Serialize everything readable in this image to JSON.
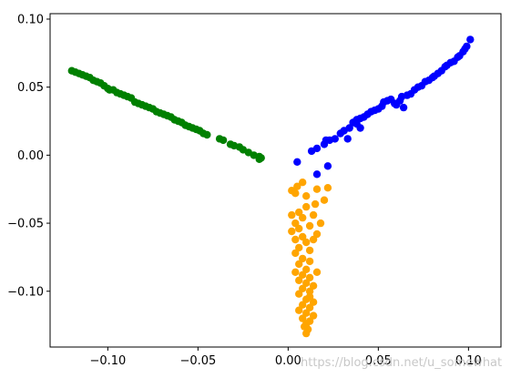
{
  "chart_data": {
    "type": "scatter",
    "title": "",
    "xlabel": "",
    "ylabel": "",
    "xlim": [
      -0.132,
      0.118
    ],
    "ylim": [
      -0.141,
      0.104
    ],
    "grid": false,
    "legend": "none",
    "x_ticks": [
      {
        "value": -0.1,
        "label": "−0.10"
      },
      {
        "value": -0.05,
        "label": "−0.05"
      },
      {
        "value": 0.0,
        "label": "0.00"
      },
      {
        "value": 0.05,
        "label": "0.05"
      },
      {
        "value": 0.1,
        "label": "0.10"
      }
    ],
    "y_ticks": [
      {
        "value": 0.1,
        "label": "0.10"
      },
      {
        "value": 0.05,
        "label": "0.05"
      },
      {
        "value": 0.0,
        "label": "0.00"
      },
      {
        "value": -0.05,
        "label": "−0.05"
      },
      {
        "value": -0.1,
        "label": "−0.10"
      }
    ],
    "series": [
      {
        "color": "#008000",
        "points": [
          [
            -0.12,
            0.062
          ],
          [
            -0.118,
            0.061
          ],
          [
            -0.116,
            0.06
          ],
          [
            -0.114,
            0.059
          ],
          [
            -0.112,
            0.058
          ],
          [
            -0.11,
            0.057
          ],
          [
            -0.108,
            0.055
          ],
          [
            -0.106,
            0.054
          ],
          [
            -0.104,
            0.053
          ],
          [
            -0.102,
            0.051
          ],
          [
            -0.1,
            0.049
          ],
          [
            -0.099,
            0.048
          ],
          [
            -0.097,
            0.048
          ],
          [
            -0.095,
            0.046
          ],
          [
            -0.093,
            0.045
          ],
          [
            -0.091,
            0.044
          ],
          [
            -0.089,
            0.043
          ],
          [
            -0.087,
            0.042
          ],
          [
            -0.085,
            0.039
          ],
          [
            -0.083,
            0.038
          ],
          [
            -0.081,
            0.037
          ],
          [
            -0.079,
            0.036
          ],
          [
            -0.077,
            0.035
          ],
          [
            -0.075,
            0.034
          ],
          [
            -0.073,
            0.032
          ],
          [
            -0.071,
            0.031
          ],
          [
            -0.069,
            0.03
          ],
          [
            -0.067,
            0.029
          ],
          [
            -0.065,
            0.028
          ],
          [
            -0.063,
            0.026
          ],
          [
            -0.061,
            0.025
          ],
          [
            -0.059,
            0.024
          ],
          [
            -0.057,
            0.022
          ],
          [
            -0.055,
            0.021
          ],
          [
            -0.053,
            0.02
          ],
          [
            -0.051,
            0.019
          ],
          [
            -0.049,
            0.018
          ],
          [
            -0.047,
            0.016
          ],
          [
            -0.045,
            0.015
          ],
          [
            -0.038,
            0.012
          ],
          [
            -0.036,
            0.011
          ],
          [
            -0.032,
            0.008
          ],
          [
            -0.03,
            0.007
          ],
          [
            -0.027,
            0.006
          ],
          [
            -0.025,
            0.004
          ],
          [
            -0.022,
            0.002
          ],
          [
            -0.019,
            0.0
          ],
          [
            -0.016,
            -0.001
          ],
          [
            -0.015,
            -0.002
          ],
          [
            -0.016,
            -0.003
          ]
        ]
      },
      {
        "color": "#0000ff",
        "points": [
          [
            0.005,
            -0.005
          ],
          [
            0.013,
            0.003
          ],
          [
            0.016,
            0.005
          ],
          [
            0.02,
            0.008
          ],
          [
            0.021,
            0.011
          ],
          [
            0.023,
            0.011
          ],
          [
            0.026,
            0.012
          ],
          [
            0.029,
            0.016
          ],
          [
            0.031,
            0.018
          ],
          [
            0.034,
            0.02
          ],
          [
            0.036,
            0.024
          ],
          [
            0.038,
            0.026
          ],
          [
            0.04,
            0.027
          ],
          [
            0.042,
            0.028
          ],
          [
            0.044,
            0.03
          ],
          [
            0.046,
            0.032
          ],
          [
            0.048,
            0.033
          ],
          [
            0.05,
            0.034
          ],
          [
            0.052,
            0.036
          ],
          [
            0.053,
            0.039
          ],
          [
            0.055,
            0.04
          ],
          [
            0.057,
            0.041
          ],
          [
            0.059,
            0.038
          ],
          [
            0.06,
            0.037
          ],
          [
            0.062,
            0.04
          ],
          [
            0.063,
            0.043
          ],
          [
            0.064,
            0.035
          ],
          [
            0.066,
            0.044
          ],
          [
            0.068,
            0.045
          ],
          [
            0.07,
            0.048
          ],
          [
            0.072,
            0.05
          ],
          [
            0.074,
            0.051
          ],
          [
            0.076,
            0.054
          ],
          [
            0.078,
            0.055
          ],
          [
            0.08,
            0.057
          ],
          [
            0.081,
            0.058
          ],
          [
            0.083,
            0.06
          ],
          [
            0.085,
            0.062
          ],
          [
            0.087,
            0.065
          ],
          [
            0.088,
            0.066
          ],
          [
            0.09,
            0.068
          ],
          [
            0.092,
            0.069
          ],
          [
            0.094,
            0.072
          ],
          [
            0.095,
            0.073
          ],
          [
            0.097,
            0.076
          ],
          [
            0.098,
            0.078
          ],
          [
            0.099,
            0.08
          ],
          [
            0.101,
            0.085
          ],
          [
            0.022,
            -0.008
          ],
          [
            0.016,
            -0.014
          ],
          [
            0.033,
            0.012
          ],
          [
            0.038,
            0.023
          ],
          [
            0.04,
            0.02
          ]
        ]
      },
      {
        "color": "#ffa500",
        "points": [
          [
            0.008,
            -0.02
          ],
          [
            0.005,
            -0.023
          ],
          [
            0.002,
            -0.026
          ],
          [
            0.004,
            -0.028
          ],
          [
            0.01,
            -0.03
          ],
          [
            0.022,
            -0.024
          ],
          [
            0.016,
            -0.025
          ],
          [
            0.02,
            -0.033
          ],
          [
            0.015,
            -0.036
          ],
          [
            0.01,
            -0.038
          ],
          [
            0.006,
            -0.042
          ],
          [
            0.002,
            -0.044
          ],
          [
            0.008,
            -0.046
          ],
          [
            0.004,
            -0.05
          ],
          [
            0.014,
            -0.044
          ],
          [
            0.018,
            -0.05
          ],
          [
            0.012,
            -0.052
          ],
          [
            0.006,
            -0.054
          ],
          [
            0.002,
            -0.056
          ],
          [
            0.008,
            -0.06
          ],
          [
            0.016,
            -0.058
          ],
          [
            0.004,
            -0.062
          ],
          [
            0.01,
            -0.064
          ],
          [
            0.014,
            -0.062
          ],
          [
            0.006,
            -0.068
          ],
          [
            0.012,
            -0.07
          ],
          [
            0.004,
            -0.072
          ],
          [
            0.008,
            -0.076
          ],
          [
            0.012,
            -0.078
          ],
          [
            0.006,
            -0.08
          ],
          [
            0.01,
            -0.084
          ],
          [
            0.004,
            -0.086
          ],
          [
            0.008,
            -0.088
          ],
          [
            0.012,
            -0.09
          ],
          [
            0.016,
            -0.086
          ],
          [
            0.006,
            -0.092
          ],
          [
            0.01,
            -0.094
          ],
          [
            0.008,
            -0.098
          ],
          [
            0.012,
            -0.1
          ],
          [
            0.006,
            -0.102
          ],
          [
            0.01,
            -0.106
          ],
          [
            0.014,
            -0.108
          ],
          [
            0.008,
            -0.11
          ],
          [
            0.012,
            -0.112
          ],
          [
            0.006,
            -0.114
          ],
          [
            0.01,
            -0.116
          ],
          [
            0.014,
            -0.118
          ],
          [
            0.008,
            -0.12
          ],
          [
            0.012,
            -0.122
          ],
          [
            0.01,
            -0.124
          ],
          [
            0.009,
            -0.126
          ],
          [
            0.011,
            -0.128
          ],
          [
            0.01,
            -0.131
          ],
          [
            0.012,
            -0.104
          ],
          [
            0.014,
            -0.096
          ]
        ]
      }
    ]
  },
  "watermark": "https://blog.csdn.net/u_somewhat"
}
